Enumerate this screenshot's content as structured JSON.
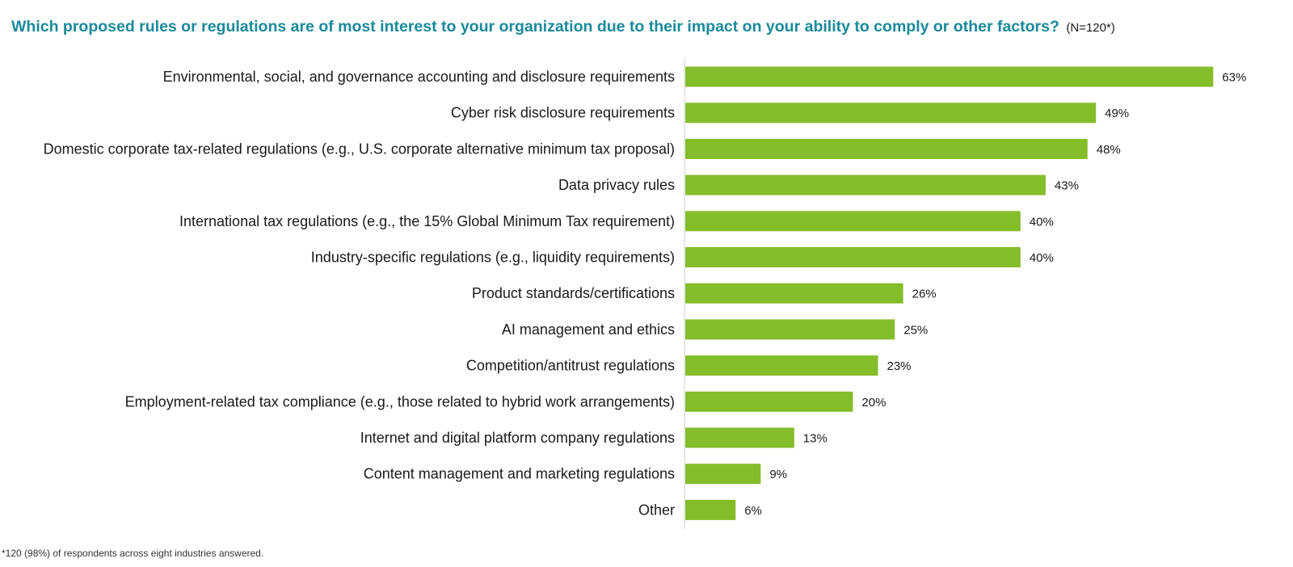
{
  "chart_data": {
    "type": "bar",
    "orientation": "horizontal",
    "title": "Which proposed rules or regulations are of most interest to your organization due to their impact on your ability to comply or other factors?",
    "subtitle": "(N=120*)",
    "categories": [
      "Environmental, social, and governance accounting and disclosure requirements",
      "Cyber risk disclosure requirements",
      "Domestic corporate tax-related regulations (e.g., U.S. corporate alternative minimum tax proposal)",
      "Data privacy rules",
      "International tax regulations (e.g., the 15% Global Minimum Tax requirement)",
      "Industry-specific regulations (e.g., liquidity requirements)",
      "Product standards/certifications",
      "AI management and ethics",
      "Competition/antitrust regulations",
      "Employment-related tax compliance (e.g., those related to hybrid work arrangements)",
      "Internet and digital platform company regulations",
      "Content management and marketing regulations",
      "Other"
    ],
    "values": [
      63,
      49,
      48,
      43,
      40,
      40,
      26,
      25,
      23,
      20,
      13,
      9,
      6
    ],
    "value_labels": [
      "63%",
      "49%",
      "48%",
      "43%",
      "40%",
      "40%",
      "26%",
      "25%",
      "23%",
      "20%",
      "13%",
      "9%",
      "6%"
    ],
    "unit": "%",
    "xlim": [
      0,
      68
    ],
    "bar_color": "#84bd2a",
    "grid": false,
    "legend": "none"
  },
  "footnote": "*120 (98%) of respondents across eight industries answered."
}
